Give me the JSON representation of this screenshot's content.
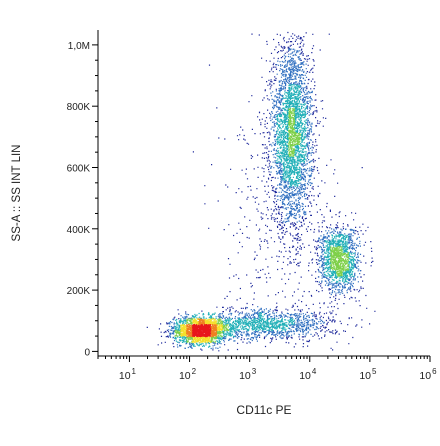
{
  "chart_data": {
    "type": "scatter",
    "subtype": "flow-cytometry-density-dot-plot",
    "xlabel": "CD11c PE",
    "ylabel": "SS-A :: SS INT LIN",
    "x_scale": "log",
    "xlim": [
      3,
      1000000
    ],
    "x_ticks": [
      {
        "value": 10,
        "base": "10",
        "exp": "1"
      },
      {
        "value": 100,
        "base": "10",
        "exp": "2"
      },
      {
        "value": 1000,
        "base": "10",
        "exp": "3"
      },
      {
        "value": 10000,
        "base": "10",
        "exp": "4"
      },
      {
        "value": 100000,
        "base": "10",
        "exp": "5"
      },
      {
        "value": 1000000,
        "base": "10",
        "exp": "6"
      }
    ],
    "y_scale": "linear",
    "ylim": [
      -15000,
      1048576
    ],
    "y_ticks": [
      {
        "value": 0,
        "label": "0"
      },
      {
        "value": 200000,
        "label": "200K"
      },
      {
        "value": 400000,
        "label": "400K"
      },
      {
        "value": 600000,
        "label": "600K"
      },
      {
        "value": 800000,
        "label": "800K"
      },
      {
        "value": 1000000,
        "label": "1,0M"
      }
    ],
    "colormap": [
      "#1f2a9c",
      "#2f6fc0",
      "#22b0b8",
      "#7fd04a",
      "#f5e02a",
      "#f08020",
      "#e8161b"
    ],
    "populations": [
      {
        "x_center": 150,
        "y_center": 70000,
        "x_spread_decades": 0.22,
        "y_spread": 22000,
        "count": 2200
      },
      {
        "x_center": 5000,
        "y_center": 710000,
        "x_spread_decades": 0.17,
        "y_spread": 150000,
        "count": 3200
      },
      {
        "x_center": 30000,
        "y_center": 300000,
        "x_spread_decades": 0.17,
        "y_spread": 55000,
        "count": 1500
      },
      {
        "x_center": 2000,
        "y_center": 90000,
        "x_spread_decades": 0.55,
        "y_spread": 25000,
        "count": 1300
      },
      {
        "x_center": 3000,
        "y_center": 450000,
        "x_spread_decades": 0.45,
        "y_spread": 200000,
        "count": 400
      }
    ]
  }
}
